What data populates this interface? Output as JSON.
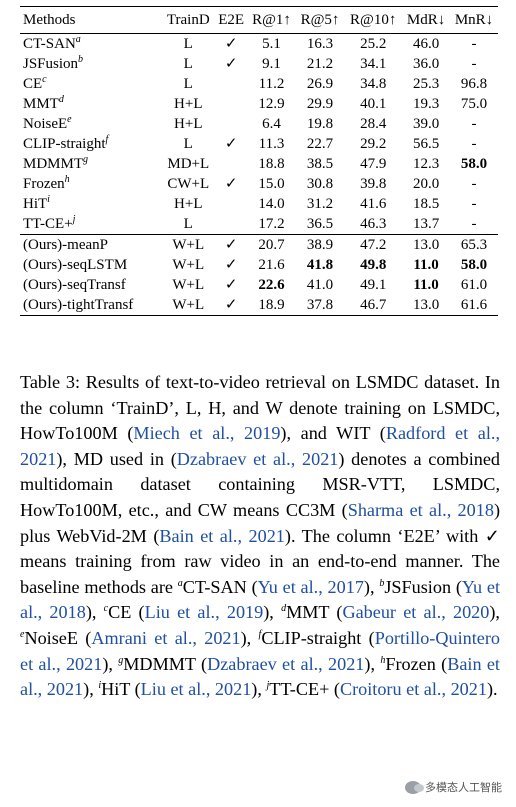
{
  "table": {
    "headers": [
      "Methods",
      "TrainD",
      "E2E",
      "R@1↑",
      "R@5↑",
      "R@10↑",
      "MdR↓",
      "MnR↓"
    ],
    "baselines": [
      {
        "method": "CT-SAN",
        "sup": "a",
        "traind": "L",
        "e2e": "✓",
        "r1": "5.1",
        "r5": "16.3",
        "r10": "25.2",
        "mdr": "46.0",
        "mnr": "-"
      },
      {
        "method": "JSFusion",
        "sup": "b",
        "traind": "L",
        "e2e": "✓",
        "r1": "9.1",
        "r5": "21.2",
        "r10": "34.1",
        "mdr": "36.0",
        "mnr": "-"
      },
      {
        "method": "CE",
        "sup": "c",
        "traind": "L",
        "e2e": "",
        "r1": "11.2",
        "r5": "26.9",
        "r10": "34.8",
        "mdr": "25.3",
        "mnr": "96.8"
      },
      {
        "method": "MMT",
        "sup": "d",
        "traind": "H+L",
        "e2e": "",
        "r1": "12.9",
        "r5": "29.9",
        "r10": "40.1",
        "mdr": "19.3",
        "mnr": "75.0"
      },
      {
        "method": "NoiseE",
        "sup": "e",
        "traind": "H+L",
        "e2e": "",
        "r1": "6.4",
        "r5": "19.8",
        "r10": "28.4",
        "mdr": "39.0",
        "mnr": "-"
      },
      {
        "method": "CLIP-straight",
        "sup": "f",
        "traind": "L",
        "e2e": "✓",
        "r1": "11.3",
        "r5": "22.7",
        "r10": "29.2",
        "mdr": "56.5",
        "mnr": "-"
      },
      {
        "method": "MDMMT",
        "sup": "g",
        "traind": "MD+L",
        "e2e": "",
        "r1": "18.8",
        "r5": "38.5",
        "r10": "47.9",
        "mdr": "12.3",
        "mnr": "58.0"
      },
      {
        "method": "Frozen",
        "sup": "h",
        "traind": "CW+L",
        "e2e": "✓",
        "r1": "15.0",
        "r5": "30.8",
        "r10": "39.8",
        "mdr": "20.0",
        "mnr": "-"
      },
      {
        "method": "HiT",
        "sup": "i",
        "traind": "H+L",
        "e2e": "",
        "r1": "14.0",
        "r5": "31.2",
        "r10": "41.6",
        "mdr": "18.5",
        "mnr": "-"
      },
      {
        "method": "TT-CE+",
        "sup": "j",
        "traind": "L",
        "e2e": "",
        "r1": "17.2",
        "r5": "36.5",
        "r10": "46.3",
        "mdr": "13.7",
        "mnr": "-"
      }
    ],
    "ours": [
      {
        "method": "(Ours)-meanP",
        "traind": "W+L",
        "e2e": "✓",
        "r1": "20.7",
        "r5": "38.9",
        "r10": "47.2",
        "mdr": "13.0",
        "mnr": "65.3"
      },
      {
        "method": "(Ours)-seqLSTM",
        "traind": "W+L",
        "e2e": "✓",
        "r1": "21.6",
        "r5": "41.8",
        "r10": "49.8",
        "mdr": "11.0",
        "mnr": "58.0"
      },
      {
        "method": "(Ours)-seqTransf",
        "traind": "W+L",
        "e2e": "✓",
        "r1": "22.6",
        "r5": "41.0",
        "r10": "49.1",
        "mdr": "11.0",
        "mnr": "61.0"
      },
      {
        "method": "(Ours)-tightTransf",
        "traind": "W+L",
        "e2e": "✓",
        "r1": "18.9",
        "r5": "37.8",
        "r10": "46.7",
        "mdr": "13.0",
        "mnr": "61.6"
      }
    ]
  },
  "caption": {
    "p01": "Table 3: Results of text-to-video retrieval on LSMDC dataset. In the column ‘TrainD’, L, H, and W denote training on LSMDC, HowTo100M (",
    "c01": "Miech et al., 2019",
    "p02": "), and WIT (",
    "c02": "Radford et al., 2021",
    "p03": "), MD used in (",
    "c03": "Dzabraev et al., 2021",
    "p04": ") denotes a combined multidomain dataset containing MSR-VTT, LSMDC, HowTo100M, etc., and CW means CC3M (",
    "c04": "Sharma et al., 2018",
    "p05": ") plus WebVid-2M (",
    "c05": "Bain et al., 2021",
    "p06": "). The column ‘E2E’ with ✓ means training from raw video in an end-to-end manner. The baseline methods are ",
    "s_a": "a",
    "p07": "CT-SAN (",
    "c06": "Yu et al., 2017",
    "p08": "), ",
    "s_b": "b",
    "p09": "JSFusion (",
    "c07": "Yu et al., 2018",
    "p10": "), ",
    "s_c": "c",
    "p11": "CE (",
    "c08": "Liu et al., 2019",
    "p12": "), ",
    "s_d": "d",
    "p13": "MMT (",
    "c09": "Gabeur et al., 2020",
    "p14": "), ",
    "s_e": "e",
    "p15": "NoiseE (",
    "c10": "Amrani et al., 2021",
    "p16": "), ",
    "s_f": "f",
    "p17": "CLIP-straight (",
    "c11": "Portillo-Quintero et al., 2021",
    "p18": "), ",
    "s_g": "g",
    "p19": "MDMMT (",
    "c12": "Dzabraev et al., 2021",
    "p20": "), ",
    "s_h": "h",
    "p21": "Frozen (",
    "c13": "Bain et al., 2021",
    "p22": "), ",
    "s_i": "i",
    "p23": "HiT (",
    "c14": "Liu et al., 2021",
    "p24": "), ",
    "s_j": "j",
    "p25": "TT-CE+ (",
    "c15": "Croitoru et al., 2021",
    "p26": ")."
  },
  "watermark": {
    "text": "多模态人工智能",
    "icon": "wechat-icon"
  }
}
